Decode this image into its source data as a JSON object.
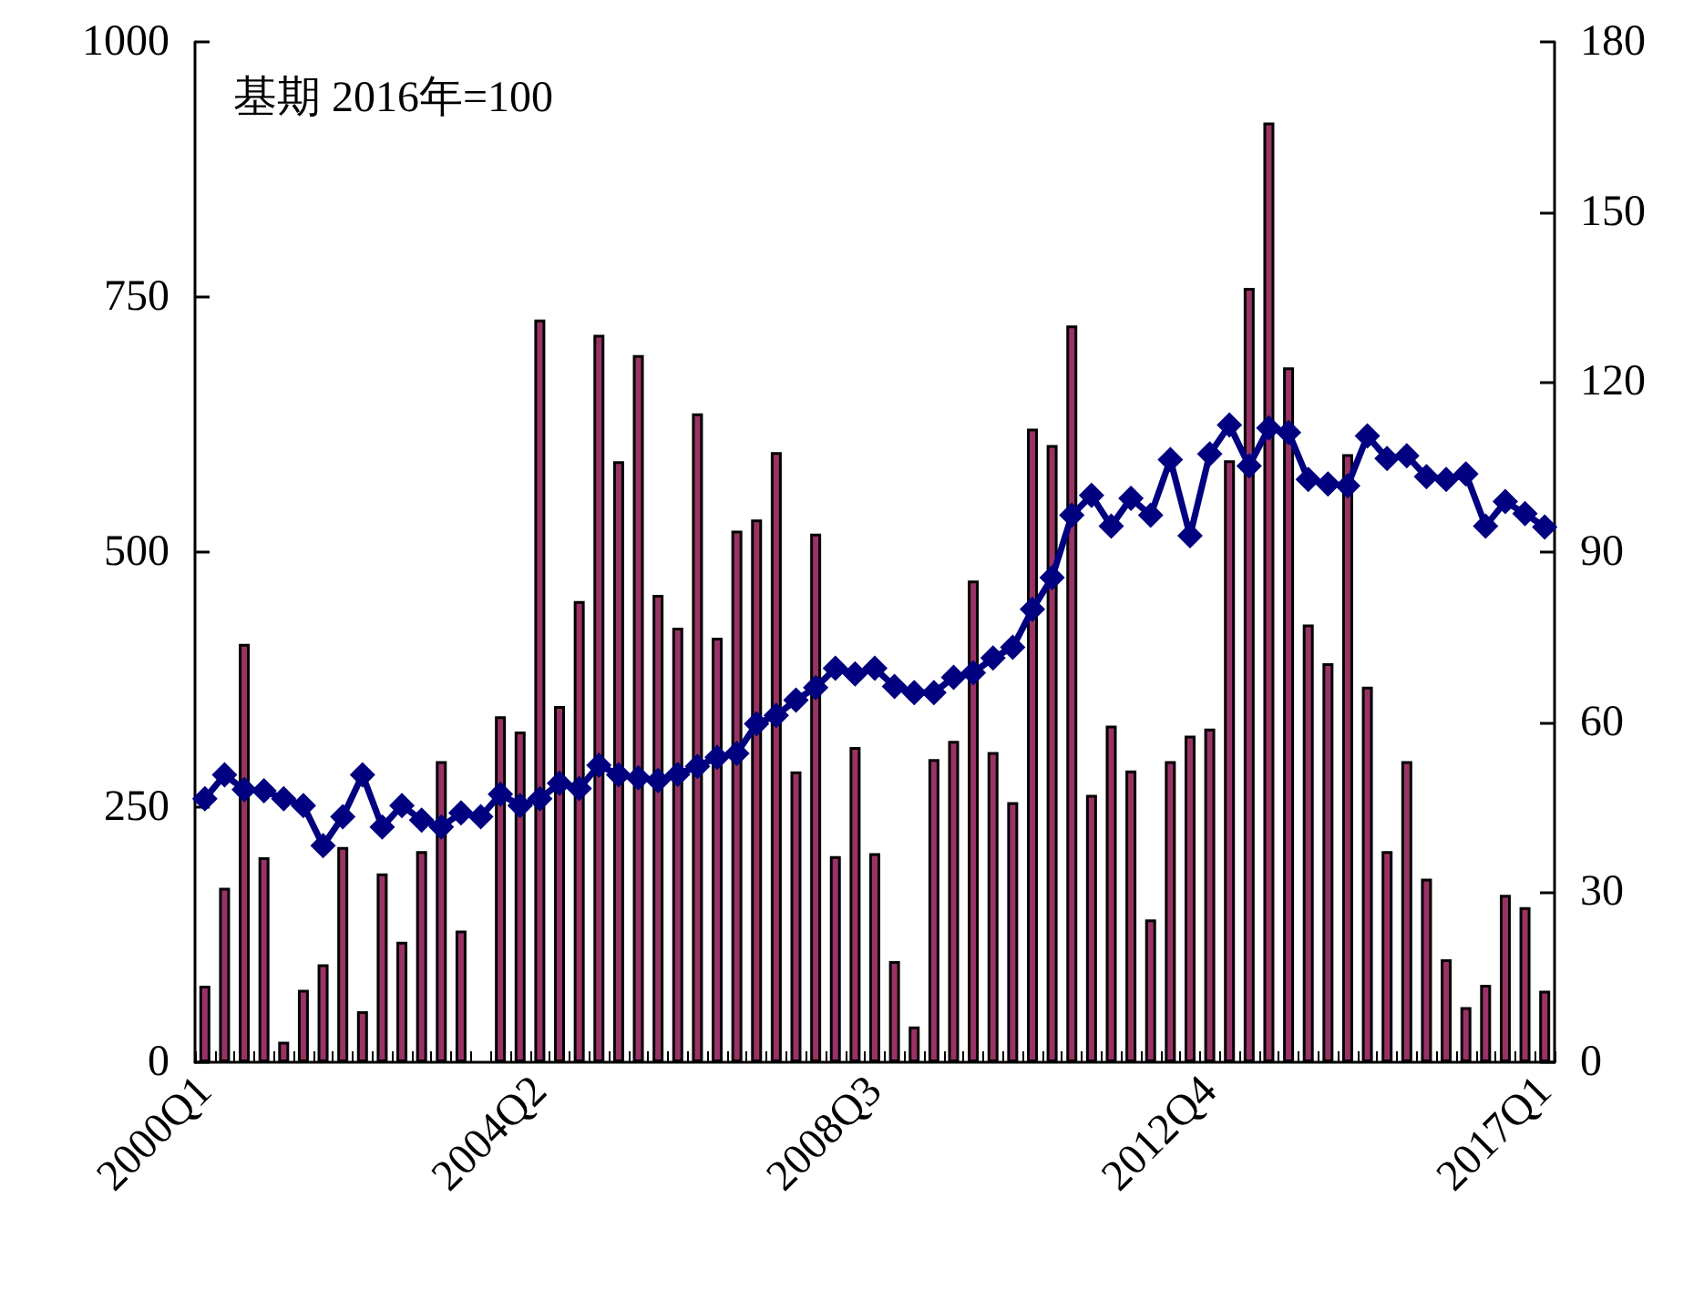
{
  "chart_data": {
    "type": "bar",
    "annotations": [
      "基期 2016年=100"
    ],
    "categories": [
      "2000Q1",
      null,
      null,
      null,
      null,
      null,
      null,
      null,
      null,
      null,
      null,
      null,
      null,
      null,
      null,
      null,
      null,
      "2004Q2",
      null,
      null,
      null,
      null,
      null,
      null,
      null,
      null,
      null,
      null,
      null,
      null,
      null,
      null,
      null,
      null,
      "2008Q3",
      null,
      null,
      null,
      null,
      null,
      null,
      null,
      null,
      null,
      null,
      null,
      null,
      null,
      null,
      null,
      null,
      "2012Q4",
      null,
      null,
      null,
      null,
      null,
      null,
      null,
      null,
      null,
      null,
      null,
      null,
      null,
      null,
      null,
      null,
      "2017Q1"
    ],
    "series": [
      {
        "color": "#993366",
        "values": [
          75,
          171,
          410,
          201,
          20,
          71,
          96,
          211,
          50,
          185,
          118,
          207,
          295,
          129,
          null,
          339,
          324,
          728,
          349,
          452,
          713,
          589,
          693,
          458,
          426,
          636,
          416,
          521,
          532,
          598,
          285,
          518,
          202,
          309,
          205,
          99,
          35,
          297,
          315,
          472,
          304,
          255,
          621,
          605,
          722,
          262,
          330,
          286,
          140,
          295,
          320,
          327,
          590,
          759,
          921,
          681,
          429,
          391,
          596,
          368,
          207,
          295,
          180,
          101,
          54,
          76,
          164,
          152,
          70
        ]
      },
      {
        "type": "line",
        "axis": "y2",
        "color": "#000080",
        "marker": "diamond",
        "values": [
          46.5,
          50.7,
          48.1,
          47.9,
          46.5,
          45.3,
          38.2,
          43.3,
          50.7,
          41.5,
          45.3,
          42.7,
          41.5,
          44.0,
          43.3,
          47.3,
          45.3,
          46.5,
          49.2,
          48.3,
          52.4,
          50.7,
          50.2,
          49.7,
          50.8,
          52.2,
          53.8,
          54.5,
          59.7,
          61.2,
          63.9,
          66.1,
          69.5,
          68.5,
          69.5,
          66.3,
          65.2,
          65.2,
          67.9,
          68.7,
          71.3,
          73.2,
          79.9,
          85.5,
          96.5,
          100.0,
          94.6,
          99.5,
          96.5,
          106.3,
          92.9,
          107.3,
          112.4,
          105.2,
          111.9,
          111.1,
          102.8,
          102.0,
          101.7,
          110.5,
          106.5,
          107.0,
          103.3,
          102.8,
          103.8,
          94.6,
          98.9,
          96.8,
          94.4
        ]
      }
    ],
    "ylim": [
      0,
      1000
    ],
    "yticks": [
      0,
      250,
      500,
      750,
      1000
    ],
    "y2lim": [
      0,
      180
    ],
    "y2ticks": [
      0,
      30,
      60,
      90,
      120,
      150,
      180
    ],
    "grid": false
  }
}
